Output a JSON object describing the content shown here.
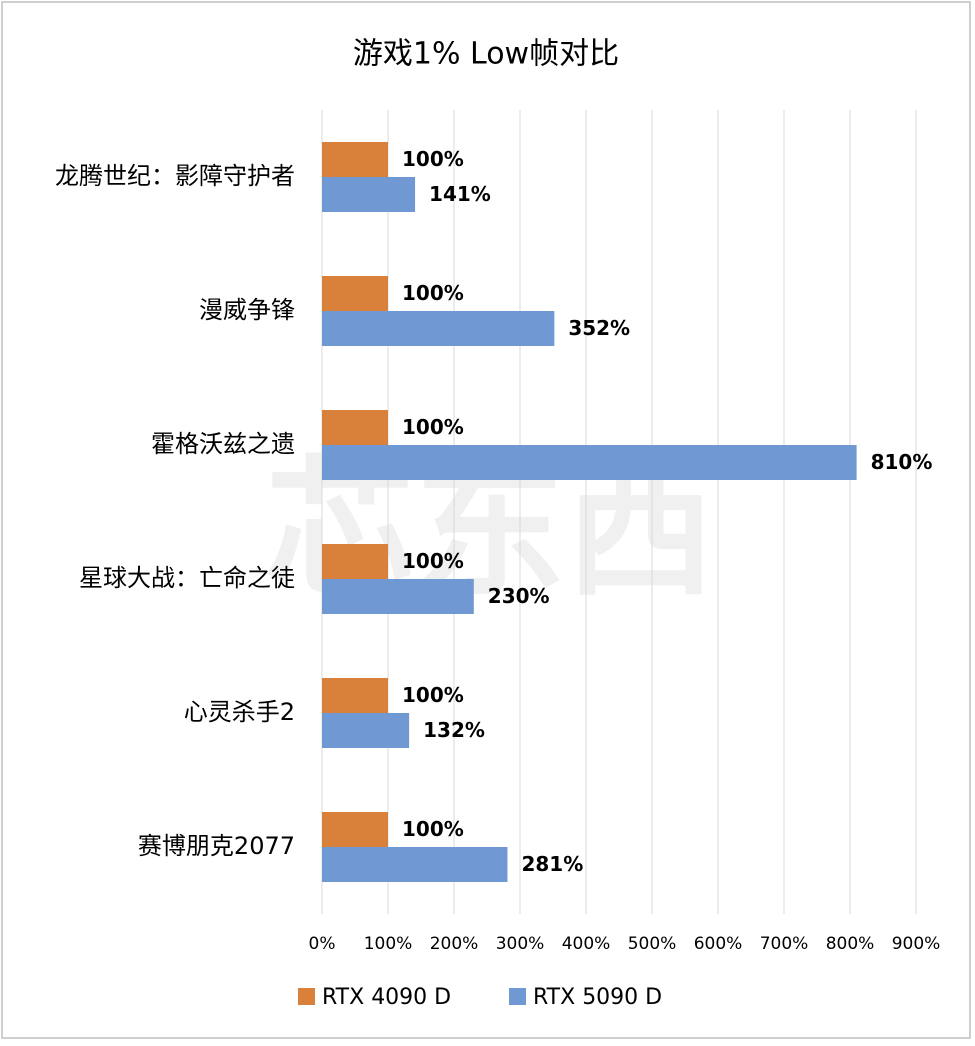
{
  "chart_data": {
    "type": "barh",
    "title": "游戏1% Low帧对比",
    "categories": [
      "龙腾世纪：影障守护者",
      "漫威争锋",
      "霍格沃兹之遗",
      "星球大战：亡命之徒",
      "心灵杀手2",
      "赛博朋克2077"
    ],
    "series": [
      {
        "name": "RTX 4090 D",
        "color": "#d9803a",
        "values": [
          100,
          100,
          100,
          100,
          100,
          100
        ],
        "value_labels": [
          "100%",
          "100%",
          "100%",
          "100%",
          "100%",
          "100%"
        ]
      },
      {
        "name": "RTX 5090 D",
        "color": "#7099d3",
        "values": [
          141,
          352,
          810,
          230,
          132,
          281
        ],
        "value_labels": [
          "141%",
          "352%",
          "810%",
          "230%",
          "132%",
          "281%"
        ]
      }
    ],
    "xlim": [
      0,
      900
    ],
    "xticks": [
      {
        "value": 0,
        "label": "0%"
      },
      {
        "value": 100,
        "label": "100%"
      },
      {
        "value": 200,
        "label": "200%"
      },
      {
        "value": 300,
        "label": "300%"
      },
      {
        "value": 400,
        "label": "400%"
      },
      {
        "value": 500,
        "label": "500%"
      },
      {
        "value": 600,
        "label": "600%"
      },
      {
        "value": 700,
        "label": "700%"
      },
      {
        "value": 800,
        "label": "800%"
      },
      {
        "value": 900,
        "label": "900%"
      }
    ],
    "grid": true,
    "legend": "bottom",
    "watermark": "芯东西"
  }
}
